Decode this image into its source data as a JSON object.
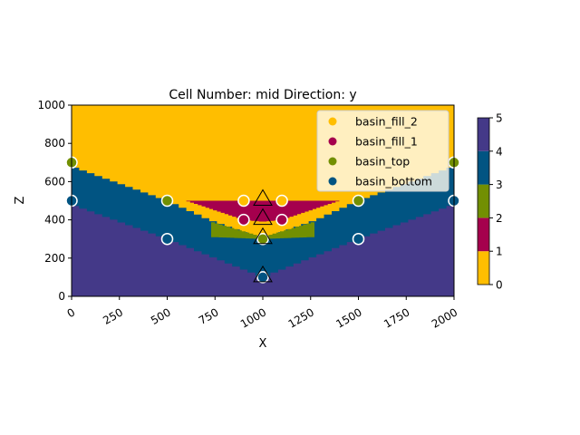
{
  "chart_data": {
    "type": "heatmap",
    "title": "Cell Number: mid Direction: y",
    "xlabel": "X",
    "ylabel": "Z",
    "xlim": [
      0,
      2000
    ],
    "ylim": [
      0,
      1000
    ],
    "x_ticks": [
      "0",
      "250",
      "500",
      "750",
      "1000",
      "1250",
      "1500",
      "1750",
      "2000"
    ],
    "y_ticks": [
      "0",
      "200",
      "400",
      "600",
      "800",
      "1000"
    ],
    "x_tick_values": [
      0,
      250,
      500,
      750,
      1000,
      1250,
      1500,
      1750,
      2000
    ],
    "y_tick_values": [
      0,
      200,
      400,
      600,
      800,
      1000
    ],
    "colors": {
      "basin_fill_2": "#ffbe00",
      "basin_fill_1": "#a5004d",
      "basin_top": "#728f02",
      "basin_bottom": "#015482",
      "basement": "#443988"
    },
    "surfaces": {
      "basin_bottom": [
        [
          0,
          480
        ],
        [
          500,
          300
        ],
        [
          1000,
          100
        ],
        [
          1500,
          300
        ],
        [
          2000,
          480
        ]
      ],
      "basin_top_channel": [
        [
          0,
          680
        ],
        [
          500,
          500
        ],
        [
          720,
          400
        ],
        [
          1000,
          300
        ],
        [
          1280,
          400
        ],
        [
          1500,
          500
        ],
        [
          2000,
          680
        ]
      ],
      "basin_top_wedge": [
        [
          730,
          390
        ],
        [
          1000,
          310
        ],
        [
          1270,
          390
        ]
      ],
      "basin_fill_1_lens": [
        [
          600,
          500
        ],
        [
          900,
          400
        ],
        [
          1000,
          390
        ],
        [
          1100,
          400
        ],
        [
          1400,
          500
        ]
      ]
    },
    "legend": {
      "placement": "upper right",
      "entries": [
        {
          "name": "basin_fill_2",
          "color": "#ffbe00"
        },
        {
          "name": "basin_fill_1",
          "color": "#a5004d"
        },
        {
          "name": "basin_top",
          "color": "#728f02"
        },
        {
          "name": "basin_bottom",
          "color": "#015482"
        }
      ]
    },
    "surface_points": [
      {
        "x": 0,
        "z": 700,
        "surface": "basin_top"
      },
      {
        "x": 0,
        "z": 500,
        "surface": "basin_bottom"
      },
      {
        "x": 500,
        "z": 500,
        "surface": "basin_top"
      },
      {
        "x": 500,
        "z": 300,
        "surface": "basin_bottom"
      },
      {
        "x": 900,
        "z": 500,
        "surface": "basin_fill_2"
      },
      {
        "x": 1100,
        "z": 500,
        "surface": "basin_fill_2"
      },
      {
        "x": 900,
        "z": 400,
        "surface": "basin_fill_1"
      },
      {
        "x": 1100,
        "z": 400,
        "surface": "basin_fill_1"
      },
      {
        "x": 1000,
        "z": 300,
        "surface": "basin_top"
      },
      {
        "x": 1000,
        "z": 100,
        "surface": "basin_bottom"
      },
      {
        "x": 1500,
        "z": 500,
        "surface": "basin_top"
      },
      {
        "x": 1500,
        "z": 300,
        "surface": "basin_bottom"
      },
      {
        "x": 2000,
        "z": 700,
        "surface": "basin_top"
      },
      {
        "x": 2000,
        "z": 500,
        "surface": "basin_bottom"
      }
    ],
    "orientations": [
      {
        "x": 1000,
        "z": 500
      },
      {
        "x": 1000,
        "z": 400
      },
      {
        "x": 1000,
        "z": 300
      },
      {
        "x": 1000,
        "z": 100
      }
    ],
    "colorbar": {
      "ticks": [
        "0",
        "1",
        "2",
        "3",
        "4",
        "5"
      ],
      "tick_values": [
        0,
        1,
        2,
        3,
        4,
        5
      ],
      "segments": [
        {
          "from": 0,
          "to": 1,
          "color": "#ffbe00"
        },
        {
          "from": 1,
          "to": 2,
          "color": "#a5004d"
        },
        {
          "from": 2,
          "to": 3,
          "color": "#728f02"
        },
        {
          "from": 3,
          "to": 4,
          "color": "#015482"
        },
        {
          "from": 4,
          "to": 5,
          "color": "#443988"
        }
      ]
    }
  }
}
